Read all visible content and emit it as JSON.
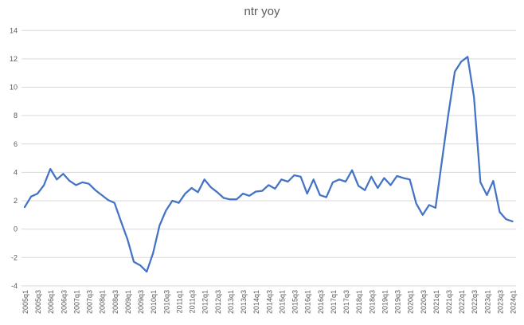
{
  "title": "ntr yoy",
  "colors": {
    "line": "#4472C4",
    "gridline": "#D9D9D9",
    "tick_label": "#595959",
    "title": "#595959",
    "background": "#FFFFFF"
  },
  "chart_data": {
    "type": "line",
    "title": "ntr yoy",
    "xlabel": "",
    "ylabel": "",
    "legend": "none",
    "grid": "horizontal",
    "x_tick_every": 2,
    "x_tick_rotation": -90,
    "ylim": [
      -4,
      14
    ],
    "y_ticks": [
      -4,
      -2,
      0,
      2,
      4,
      6,
      8,
      10,
      12,
      14
    ],
    "categories": [
      "2005q1",
      "2005q2",
      "2005q3",
      "2005q4",
      "2006q1",
      "2006q2",
      "2006q3",
      "2006q4",
      "2007q1",
      "2007q2",
      "2007q3",
      "2007q4",
      "2008q1",
      "2008q2",
      "2008q3",
      "2008q4",
      "2009q1",
      "2009q2",
      "2009q3",
      "2009q4",
      "2010q1",
      "2010q2",
      "2010q3",
      "2010q4",
      "2011q1",
      "2011q2",
      "2011q3",
      "2011q4",
      "2012q1",
      "2012q2",
      "2012q3",
      "2012q4",
      "2013q1",
      "2013q2",
      "2013q3",
      "2013q4",
      "2014q1",
      "2014q2",
      "2014q3",
      "2014q4",
      "2015q1",
      "2015q2",
      "2015q3",
      "2015q4",
      "2016q1",
      "2016q2",
      "2016q3",
      "2016q4",
      "2017q1",
      "2017q2",
      "2017q3",
      "2017q4",
      "2018q1",
      "2018q2",
      "2018q3",
      "2018q4",
      "2019q1",
      "2019q2",
      "2019q3",
      "2019q4",
      "2020q1",
      "2020q2",
      "2020q3",
      "2020q4",
      "2021q1",
      "2021q2",
      "2021q3",
      "2021q4",
      "2022q1",
      "2022q2",
      "2022q3",
      "2022q4",
      "2023q1",
      "2023q2",
      "2023q3",
      "2023q4",
      "2024q1"
    ],
    "values": [
      1.55,
      2.3,
      2.5,
      3.1,
      4.25,
      3.5,
      3.9,
      3.4,
      3.1,
      3.3,
      3.2,
      2.75,
      2.4,
      2.05,
      1.85,
      0.55,
      -0.7,
      -2.3,
      -2.55,
      -3.0,
      -1.7,
      0.25,
      1.3,
      2.0,
      1.85,
      2.5,
      2.9,
      2.6,
      3.5,
      2.95,
      2.6,
      2.2,
      2.1,
      2.1,
      2.5,
      2.35,
      2.65,
      2.7,
      3.1,
      2.85,
      3.5,
      3.35,
      3.8,
      3.7,
      2.5,
      3.5,
      2.4,
      2.25,
      3.3,
      3.5,
      3.35,
      4.15,
      3.05,
      2.75,
      3.7,
      2.9,
      3.6,
      3.1,
      3.75,
      3.6,
      3.5,
      1.8,
      1.0,
      1.7,
      1.5,
      4.8,
      8.1,
      11.1,
      11.8,
      12.15,
      9.3,
      3.3,
      2.4,
      3.4,
      1.2,
      0.7,
      0.55
    ]
  }
}
